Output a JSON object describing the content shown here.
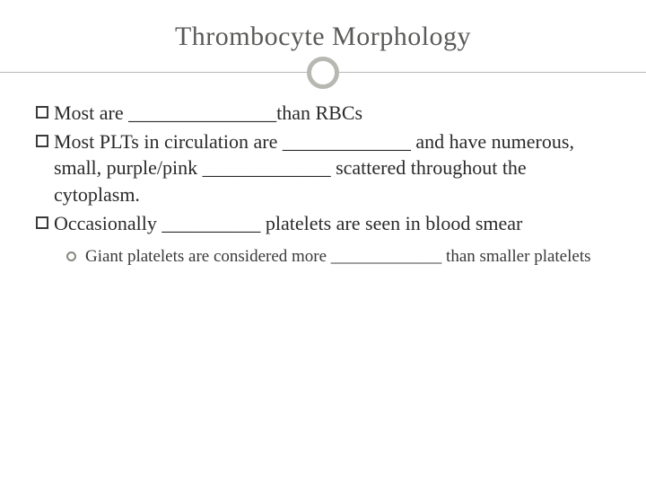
{
  "slide": {
    "title": "Thrombocyte Morphology",
    "bullets": [
      {
        "text": "Most are _______________than RBCs"
      },
      {
        "text": "Most PLTs in circulation are _____________ and have numerous, small, purple/pink _____________ scattered throughout the cytoplasm."
      },
      {
        "text": "Occasionally __________ platelets are seen in blood smear"
      }
    ],
    "subitems": [
      {
        "text": "Giant platelets are considered more _____________ than smaller platelets"
      }
    ]
  },
  "styling": {
    "background_color": "#ffffff",
    "title_color": "#5a5a58",
    "title_fontsize": 30,
    "body_color": "#2a2a2a",
    "body_fontsize": 22,
    "sub_fontsize": 19,
    "line_color": "#b8b8b2",
    "circle_border": "#b8b8b2",
    "circle_border_width": 5,
    "square_bullet_border": "#3a3a3a",
    "ring_bullet_border": "#888880",
    "font_family": "Georgia"
  }
}
